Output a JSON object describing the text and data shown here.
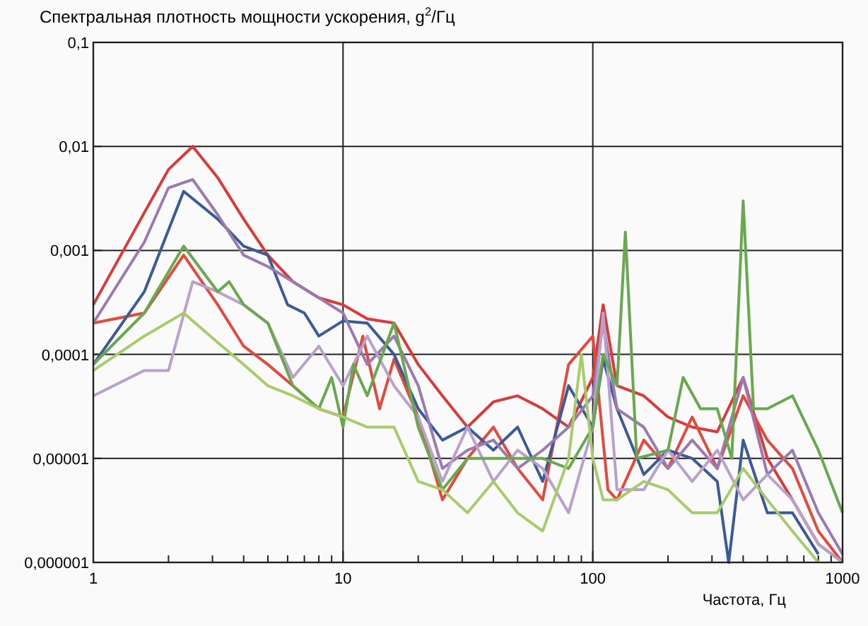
{
  "chart_data": {
    "type": "line",
    "ylabel": "Спектральная плотность мощности ускорения, g$^{2}$/Гц",
    "xlabel": "Частота, Гц",
    "log": "xy",
    "grid": true,
    "line_style": "solid",
    "xlim": [
      1,
      1000
    ],
    "ylim": [
      1e-06,
      0.1
    ],
    "xticks": [
      1,
      {
        "value": 2,
        "label": null
      },
      {
        "value": 3,
        "label": null
      },
      {
        "value": 4,
        "label": null
      },
      {
        "value": 5,
        "label": null
      },
      {
        "value": 6,
        "label": null
      },
      {
        "value": 7,
        "label": null
      },
      {
        "value": 8,
        "label": null
      },
      {
        "value": 9,
        "label": null
      },
      10,
      {
        "value": 20,
        "label": null
      },
      {
        "value": 30,
        "label": null
      },
      {
        "value": 40,
        "label": null
      },
      {
        "value": 50,
        "label": null
      },
      {
        "value": 60,
        "label": null
      },
      {
        "value": 70,
        "label": null
      },
      {
        "value": 80,
        "label": null
      },
      {
        "value": 90,
        "label": null
      },
      100,
      {
        "value": 200,
        "label": null
      },
      {
        "value": 300,
        "label": null
      },
      {
        "value": 400,
        "label": null
      },
      {
        "value": 500,
        "label": null
      },
      {
        "value": 600,
        "label": null
      },
      {
        "value": 700,
        "label": null
      },
      {
        "value": 800,
        "label": null
      },
      {
        "value": 900,
        "label": null
      },
      1000
    ],
    "yticks": [
      {
        "value": 1e-06,
        "label": "0,000001"
      },
      {
        "value": 1e-05,
        "label": "0,00001"
      },
      {
        "value": 0.0001,
        "label": "0,0001"
      },
      {
        "value": 0.001,
        "label": "0,001"
      },
      {
        "value": 0.01,
        "label": "0,01"
      },
      {
        "value": 0.1,
        "label": "0,1"
      }
    ],
    "series": [
      {
        "color": "#d93a3a",
        "x": [
          1,
          1.6,
          2,
          2.5,
          3.15,
          4,
          5,
          6.3,
          8,
          10,
          12.5,
          16,
          20,
          25,
          31.5,
          40,
          50,
          63,
          80,
          100,
          110,
          125,
          160,
          200,
          250,
          315,
          400,
          500,
          630,
          800,
          1000
        ],
        "values": [
          0.0003,
          0.0023,
          0.006,
          0.01,
          0.005,
          0.002,
          0.0009,
          0.0005,
          0.00035,
          0.0003,
          0.00022,
          0.0002,
          8e-05,
          4e-05,
          2e-05,
          3.5e-05,
          4e-05,
          3e-05,
          2e-05,
          6e-05,
          0.0003,
          5e-05,
          4e-05,
          2.5e-05,
          2e-05,
          1.8e-05,
          6e-05,
          1e-05,
          4e-06,
          1.5e-06,
          1e-06
        ]
      },
      {
        "color": "#e24a3e",
        "x": [
          1,
          1.6,
          2.3,
          3.15,
          4,
          5,
          6.3,
          8,
          10,
          12,
          14,
          16,
          20,
          25,
          31.5,
          40,
          50,
          63,
          80,
          100,
          115,
          125,
          160,
          200,
          250,
          315,
          400,
          500,
          630,
          800,
          1000
        ],
        "values": [
          0.0002,
          0.00025,
          0.0009,
          0.0003,
          0.00012,
          8e-05,
          5e-05,
          3e-05,
          2.5e-05,
          0.00015,
          3e-05,
          9e-05,
          2.5e-05,
          4e-06,
          1e-05,
          2e-05,
          8e-06,
          4e-06,
          8e-05,
          0.00015,
          5e-06,
          4e-06,
          1.5e-05,
          8e-06,
          2.5e-05,
          8e-06,
          4e-05,
          1.5e-05,
          8e-06,
          2e-06,
          1e-06
        ]
      },
      {
        "color": "#3a5a9a",
        "x": [
          1,
          1.6,
          2.3,
          3.15,
          4,
          5,
          6,
          7,
          8,
          10,
          12.5,
          16,
          20,
          25,
          31.5,
          40,
          50,
          63,
          80,
          100,
          110,
          125,
          160,
          200,
          250,
          315,
          350,
          400,
          500,
          630,
          800
        ],
        "values": [
          8e-05,
          0.0004,
          0.0037,
          0.002,
          0.0011,
          0.0009,
          0.0003,
          0.00025,
          0.00015,
          0.00021,
          0.0002,
          0.0001,
          3e-05,
          1.5e-05,
          2e-05,
          1.2e-05,
          2e-05,
          6e-06,
          5e-05,
          2e-05,
          9e-05,
          3e-05,
          7e-06,
          1.2e-05,
          1e-05,
          6e-06,
          1e-06,
          1.5e-05,
          3e-06,
          3e-06,
          1.2e-06
        ]
      },
      {
        "color": "#9a7ab0",
        "x": [
          1,
          1.6,
          2,
          2.5,
          3.15,
          4,
          5,
          6.3,
          8,
          10,
          12.5,
          16,
          20,
          25,
          31.5,
          40,
          50,
          63,
          80,
          100,
          110,
          125,
          160,
          200,
          250,
          315,
          400,
          500,
          630,
          800,
          1000
        ],
        "values": [
          0.0002,
          0.0012,
          0.004,
          0.0048,
          0.0022,
          0.0009,
          0.0007,
          0.0005,
          0.00035,
          0.00025,
          8e-05,
          0.00015,
          5e-05,
          8e-06,
          1.2e-05,
          1.5e-05,
          8e-06,
          1.2e-05,
          2e-05,
          4e-05,
          0.0002,
          3e-05,
          2e-05,
          8e-06,
          1.5e-05,
          8e-06,
          6e-05,
          7e-06,
          1.2e-05,
          3e-06,
          1.2e-06
        ]
      },
      {
        "color": "#b8a2cc",
        "x": [
          1,
          1.6,
          2,
          2.5,
          3.15,
          4,
          5,
          6.3,
          8,
          10,
          12.5,
          16,
          20,
          25,
          31.5,
          40,
          50,
          63,
          80,
          100,
          110,
          125,
          160,
          200,
          250,
          315,
          400,
          500,
          630,
          800,
          1000
        ],
        "values": [
          4e-05,
          7e-05,
          7e-05,
          0.0005,
          0.0004,
          0.0003,
          0.0002,
          6e-05,
          0.00012,
          5e-05,
          0.00015,
          5e-05,
          2.5e-05,
          6e-06,
          2e-05,
          6e-06,
          1.2e-05,
          8e-06,
          3e-06,
          2e-05,
          0.00025,
          5e-06,
          5e-06,
          1.2e-05,
          6e-06,
          1.2e-05,
          4e-06,
          7e-06,
          4e-06,
          1.5e-06,
          1e-06
        ]
      },
      {
        "color": "#6aa84f",
        "x": [
          1,
          1.6,
          2.3,
          3.15,
          3.5,
          4,
          5,
          6.3,
          8,
          9,
          10,
          11,
          12.5,
          16,
          20,
          25,
          31.5,
          40,
          50,
          63,
          80,
          100,
          110,
          125,
          135,
          150,
          200,
          230,
          270,
          315,
          360,
          400,
          440,
          500,
          630,
          800,
          1000
        ],
        "values": [
          8e-05,
          0.00025,
          0.0011,
          0.0004,
          0.0005,
          0.0003,
          0.0002,
          5e-05,
          3e-05,
          6e-05,
          2e-05,
          8e-05,
          4e-05,
          0.0002,
          2e-05,
          5e-06,
          1e-05,
          1e-05,
          1e-05,
          1e-05,
          8e-06,
          2e-05,
          0.0001,
          5e-05,
          0.0015,
          1e-05,
          1.2e-05,
          6e-05,
          3e-05,
          3e-05,
          1e-05,
          0.003,
          3e-05,
          3e-05,
          4e-05,
          1.2e-05,
          3e-06
        ]
      },
      {
        "color": "#a8cc6a",
        "x": [
          1,
          1.6,
          2.3,
          3.15,
          4,
          5,
          6.3,
          8,
          10,
          12.5,
          16,
          20,
          25,
          31.5,
          40,
          50,
          63,
          80,
          90,
          100,
          110,
          125,
          160,
          200,
          250,
          315,
          400,
          500,
          630,
          800
        ],
        "values": [
          7e-05,
          0.00015,
          0.00025,
          0.00013,
          8e-05,
          5e-05,
          4e-05,
          3e-05,
          2.5e-05,
          2e-05,
          2e-05,
          6e-06,
          5e-06,
          3e-06,
          6e-06,
          3e-06,
          2e-06,
          1e-05,
          0.0001,
          1e-05,
          4e-06,
          4e-06,
          6e-06,
          5e-06,
          3e-06,
          3e-06,
          8e-06,
          4e-06,
          2e-06,
          1e-06
        ]
      }
    ]
  }
}
